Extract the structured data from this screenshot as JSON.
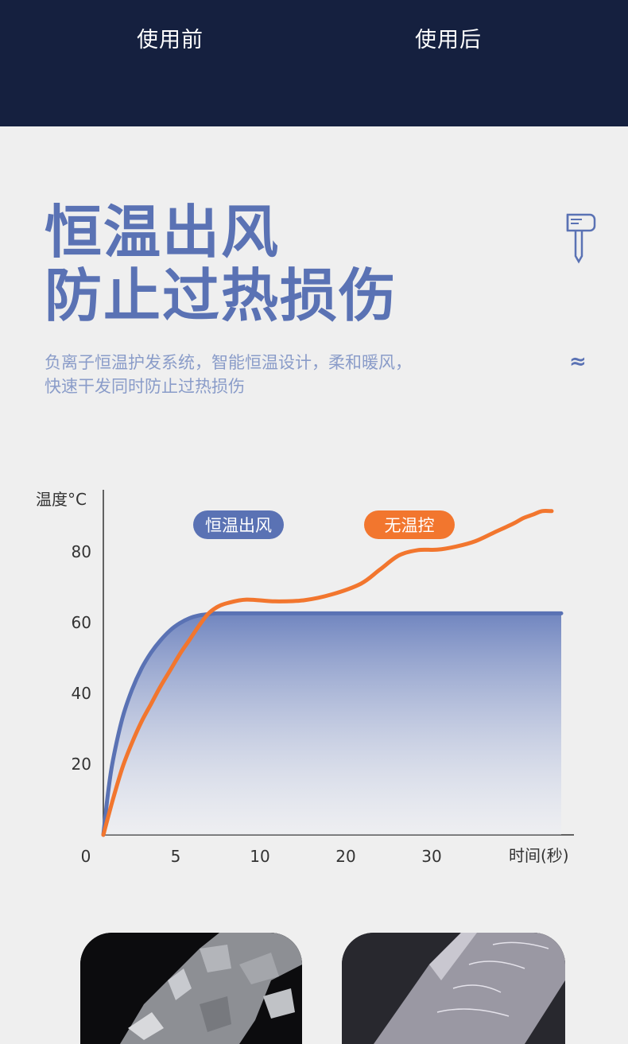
{
  "comparison": {
    "before_label": "使用前",
    "after_label": "使用后"
  },
  "headline": {
    "line1": "恒温出风",
    "line2": "防止过热损伤"
  },
  "description": {
    "line1": "负离子恒温护发系统，智能恒温设计，柔和暖风，",
    "line2": "快速干发同时防止过热损伤"
  },
  "icons": {
    "dryer": "hair-dryer-icon",
    "wave": "wave-icon",
    "wave_glyph": "≈"
  },
  "colors": {
    "band": "#15203f",
    "accent_blue": "#5a72b4",
    "accent_orange": "#f2762e",
    "text_light": "#8a9cc9"
  },
  "chart_data": {
    "type": "line",
    "ylabel": "温度°C",
    "xlabel": "时间(秒)",
    "x_ticks": [
      0,
      5,
      10,
      20,
      30
    ],
    "y_ticks": [
      20,
      40,
      60,
      80
    ],
    "legend_position": "top",
    "series": [
      {
        "name": "恒温出风",
        "color": "#5a72b4",
        "fill": true,
        "points": [
          [
            0,
            0
          ],
          [
            0.5,
            12
          ],
          [
            1,
            21
          ],
          [
            2,
            33
          ],
          [
            3,
            41
          ],
          [
            4,
            47
          ],
          [
            5,
            51.5
          ],
          [
            6,
            55
          ],
          [
            7,
            57.8
          ],
          [
            8,
            59.8
          ],
          [
            9,
            61.2
          ],
          [
            10,
            62
          ],
          [
            11,
            62.4
          ],
          [
            12,
            62.6
          ],
          [
            15,
            62.6
          ],
          [
            20,
            62.6
          ],
          [
            25,
            62.6
          ],
          [
            30,
            62.6
          ],
          [
            35,
            62.6
          ],
          [
            40,
            62.6
          ],
          [
            45,
            62.6
          ],
          [
            48,
            62.6
          ]
        ]
      },
      {
        "name": "无温控",
        "color": "#f2762e",
        "fill": false,
        "points": [
          [
            0,
            0
          ],
          [
            1,
            10
          ],
          [
            2,
            19
          ],
          [
            3,
            26
          ],
          [
            4,
            32
          ],
          [
            5,
            37
          ],
          [
            6,
            42
          ],
          [
            7,
            46.5
          ],
          [
            8,
            51
          ],
          [
            9,
            55
          ],
          [
            10,
            59
          ],
          [
            11,
            62.5
          ],
          [
            12,
            64.5
          ],
          [
            13,
            65.5
          ],
          [
            15,
            66.5
          ],
          [
            18,
            66
          ],
          [
            21,
            66.3
          ],
          [
            24,
            68
          ],
          [
            27,
            71
          ],
          [
            29,
            75
          ],
          [
            31,
            79
          ],
          [
            33,
            80.5
          ],
          [
            35,
            80.6
          ],
          [
            37,
            81.5
          ],
          [
            39,
            83
          ],
          [
            41,
            85.5
          ],
          [
            43,
            88
          ],
          [
            44,
            89.5
          ],
          [
            45,
            90.5
          ],
          [
            46,
            91.5
          ],
          [
            47,
            91.5
          ]
        ]
      }
    ]
  }
}
